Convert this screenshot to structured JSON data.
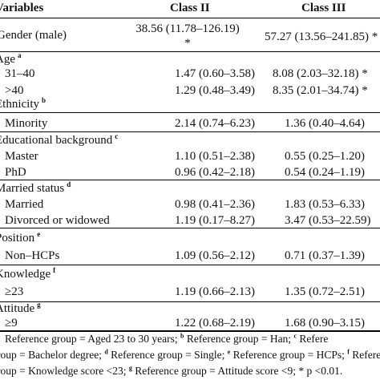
{
  "header": {
    "col1": "Variables",
    "col2": "Class II",
    "col3": "Class III"
  },
  "gender": {
    "label": "Gender (male)",
    "class2": "38.56 (11.78–126.19)",
    "class2_star": "*",
    "class3": "57.27 (13.56–241.85) *"
  },
  "age": {
    "label": "Age",
    "sup": "a",
    "rows": [
      {
        "label": "31–40",
        "class2": "1.47 (0.60–3.58)",
        "class3": "8.08 (2.03–32.18) *"
      },
      {
        "label": ">40",
        "class2": "1.29 (0.48–3.49)",
        "class3": "8.35 (2.01–34.74) *"
      }
    ]
  },
  "ethnicity": {
    "label": "Ethnicity",
    "sup": "b",
    "rows": [
      {
        "label": "Minority",
        "class2": "2.14 (0.74–6.23)",
        "class3": "1.36 (0.40–4.64)"
      }
    ]
  },
  "education": {
    "label": "Educational background",
    "sup": "c",
    "rows": [
      {
        "label": "Master",
        "class2": "1.10 (0.51–2.38)",
        "class3": "0.55 (0.25–1.20)"
      },
      {
        "label": "PhD",
        "class2": "0.96 (0.42–2.18)",
        "class3": "0.54 (0.24–1.19)"
      }
    ]
  },
  "married": {
    "label": "Married status",
    "sup": "d",
    "rows": [
      {
        "label": "Married",
        "class2": "0.98 (0.41–2.36)",
        "class3": "1.83 (0.53–6.33)"
      },
      {
        "label": "Divorced or widowed",
        "class2": "1.19 (0.17–8.27)",
        "class3": "3.47 (0.53–22.59)"
      }
    ]
  },
  "position": {
    "label": "Position",
    "sup": "e",
    "rows": [
      {
        "label": "Non–HCPs",
        "class2": "1.09 (0.56–2.12)",
        "class3": "0.71 (0.37–1.39)"
      }
    ]
  },
  "knowledge": {
    "label": "Knowledge",
    "sup": "f",
    "rows": [
      {
        "label": "≥23",
        "class2": "1.19 (0.66–2.13)",
        "class3": "1.35 (0.72–2.51)"
      }
    ]
  },
  "attitude": {
    "label": "Attitude",
    "sup": "g",
    "rows": [
      {
        "label": "≥9",
        "class2": "1.22 (0.68–2.19)",
        "class3": "1.68 (0.90–3.15)"
      }
    ]
  },
  "notes": {
    "line1_pre": "Reference group = Aged 23 to 30 years; ",
    "line1_sup_b": "b",
    "line1_mid": " Reference group = Han; ",
    "line1_sup_c": "c",
    "line1_post": " Refere",
    "line2_pre": "roup = Bachelor degree; ",
    "line2_sup_d": "d",
    "line2_mid": " Reference group = Single; ",
    "line2_sup_e": "e",
    "line2_mid2": " Reference group = HCPs; ",
    "line2_sup_f": "f",
    "line2_post": " Reference",
    "line3_pre": "roup = Knowledge score <23; ",
    "line3_sup_g": "g",
    "line3_post": " Reference group = Attitude score <9; * p <0.01."
  }
}
